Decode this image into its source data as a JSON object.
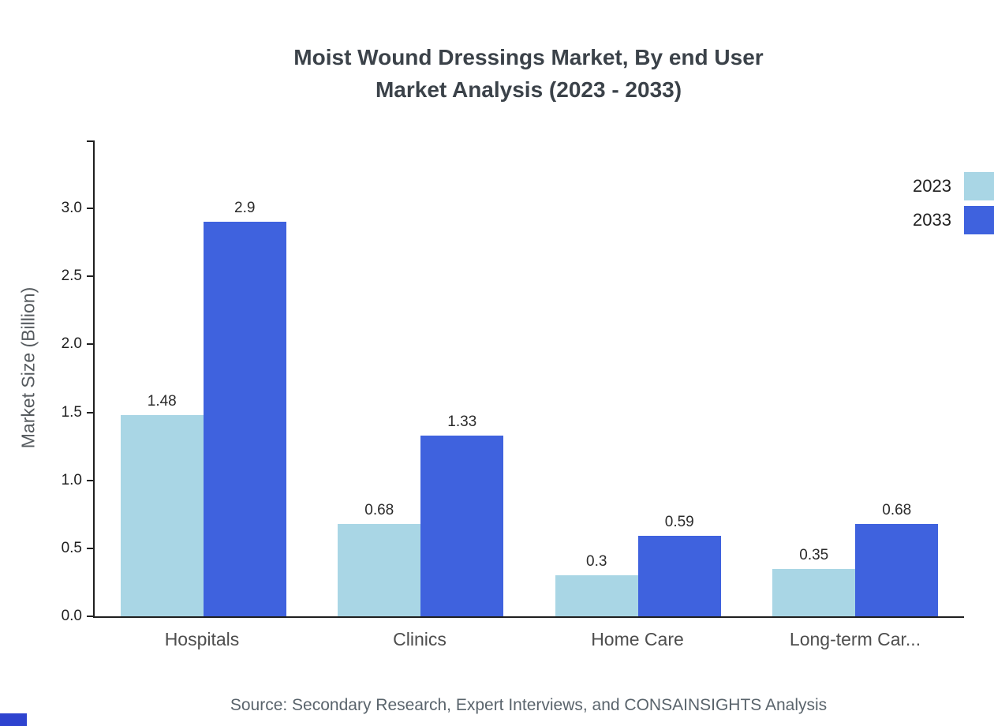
{
  "chart_data": {
    "type": "bar",
    "title": "Moist Wound Dressings Market, By end User",
    "subtitle": "Market Analysis (2023 - 2033)",
    "xlabel": "",
    "ylabel": "Market Size (Billion)",
    "categories": [
      "Hospitals",
      "Clinics",
      "Home Care",
      "Long-term Car..."
    ],
    "series": [
      {
        "name": "2023",
        "color": "#A9D6E5",
        "values": [
          1.48,
          0.68,
          0.3,
          0.35
        ]
      },
      {
        "name": "2033",
        "color": "#3F62DE",
        "values": [
          2.9,
          1.33,
          0.59,
          0.68
        ]
      }
    ],
    "ylim": [
      0,
      3.5
    ],
    "yticks": [
      "0.0",
      "0.5",
      "1.0",
      "1.5",
      "2.0",
      "2.5",
      "3.0"
    ],
    "grid": false,
    "legend_position": "top-right"
  },
  "source": "Source: Secondary Research, Expert Interviews, and CONSAINSIGHTS Analysis",
  "colors": {
    "axis": "#1f1f1f",
    "title": "#3b4249",
    "category_label": "#4e4e4e",
    "source_text": "#5a646c",
    "corner_accent": "#2e43cf"
  }
}
